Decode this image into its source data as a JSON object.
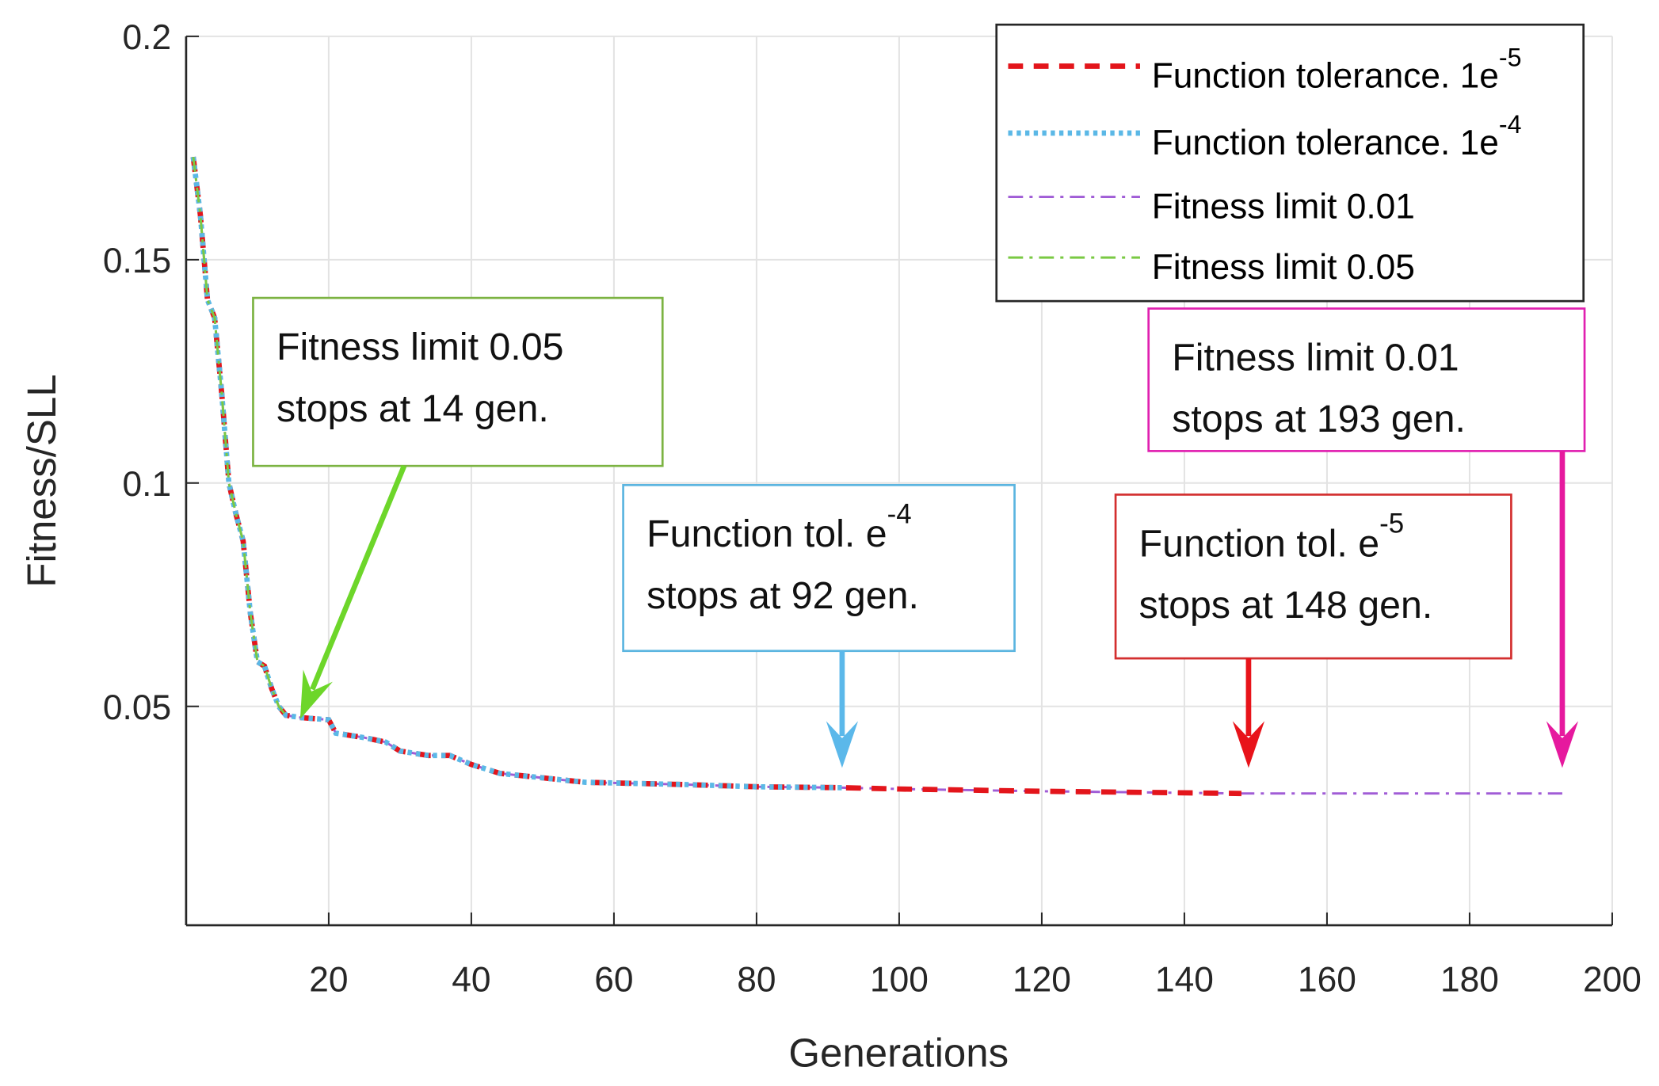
{
  "chart_data": {
    "type": "line",
    "xlabel": "Generations",
    "ylabel": "Fitness/SLL",
    "xlim": [
      0,
      200
    ],
    "ylim": [
      0.001,
      0.2
    ],
    "xticks": [
      20,
      40,
      60,
      80,
      100,
      120,
      140,
      160,
      180,
      200
    ],
    "yticks": [
      0.05,
      0.1,
      0.15,
      0.2
    ],
    "ytick_labels": [
      "0.05",
      "0.1",
      "0.15",
      "0.2"
    ],
    "grid": true,
    "legend_position": "top-right",
    "curve": {
      "x": [
        1,
        2,
        3,
        4,
        5,
        6,
        7,
        8,
        9,
        10,
        11,
        12,
        13,
        14,
        16,
        20,
        21,
        25,
        28,
        30,
        34,
        37,
        40,
        44,
        50,
        56,
        70,
        80,
        92,
        100,
        120,
        148,
        170,
        193
      ],
      "y": [
        0.173,
        0.16,
        0.141,
        0.137,
        0.12,
        0.1,
        0.093,
        0.087,
        0.071,
        0.06,
        0.059,
        0.054,
        0.05,
        0.048,
        0.0475,
        0.047,
        0.044,
        0.043,
        0.042,
        0.04,
        0.039,
        0.039,
        0.037,
        0.035,
        0.034,
        0.033,
        0.0325,
        0.032,
        0.0318,
        0.0315,
        0.031,
        0.0305,
        0.0305,
        0.0305
      ]
    },
    "series": [
      {
        "name": "Function tolerance. 1e",
        "sup": "-5",
        "color": "#e3151b",
        "style": "dashed",
        "stop_gen": 148
      },
      {
        "name": "Function tolerance. 1e",
        "sup": "-4",
        "color": "#5bb8e6",
        "style": "dotted",
        "stop_gen": 92
      },
      {
        "name": "Fitness limit 0.01",
        "sup": "",
        "color": "#a05cd6",
        "style": "dashdot",
        "stop_gen": 193
      },
      {
        "name": "Fitness limit 0.05",
        "sup": "",
        "color": "#7ac943",
        "style": "dashdot",
        "stop_gen": 14
      }
    ],
    "annotations": [
      {
        "line1": "Fitness limit 0.05",
        "sup": "",
        "line2": "stops at 14 gen.",
        "color": "#7cb342",
        "arrow_color": "#6dd62a",
        "target_gen": 16
      },
      {
        "line1": "Function tol. e",
        "sup": "-4",
        "line2": "stops at 92 gen.",
        "color": "#5bb5e0",
        "arrow_color": "#5bb8ea",
        "target_gen": 92
      },
      {
        "line1": "Function tol. e",
        "sup": "-5",
        "line2": "stops at 148 gen.",
        "color": "#d32f2f",
        "arrow_color": "#e8131a",
        "target_gen": 149
      },
      {
        "line1": "Fitness limit 0.01",
        "sup": "",
        "line2": "stops at 193 gen.",
        "color": "#e020b0",
        "arrow_color": "#e6199e",
        "target_gen": 193
      }
    ]
  }
}
